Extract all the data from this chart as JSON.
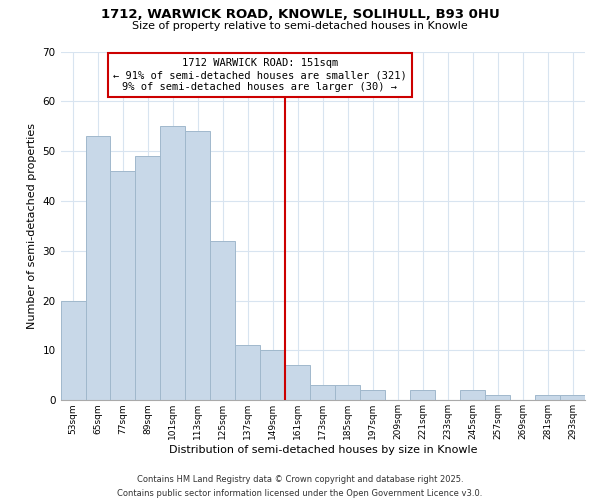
{
  "title": "1712, WARWICK ROAD, KNOWLE, SOLIHULL, B93 0HU",
  "subtitle": "Size of property relative to semi-detached houses in Knowle",
  "xlabel": "Distribution of semi-detached houses by size in Knowle",
  "ylabel": "Number of semi-detached properties",
  "bar_color": "#c8d8e8",
  "bar_edge_color": "#a0b8cc",
  "categories": [
    "53sqm",
    "65sqm",
    "77sqm",
    "89sqm",
    "101sqm",
    "113sqm",
    "125sqm",
    "137sqm",
    "149sqm",
    "161sqm",
    "173sqm",
    "185sqm",
    "197sqm",
    "209sqm",
    "221sqm",
    "233sqm",
    "245sqm",
    "257sqm",
    "269sqm",
    "281sqm",
    "293sqm"
  ],
  "values": [
    20,
    53,
    46,
    49,
    55,
    54,
    32,
    11,
    10,
    7,
    3,
    3,
    2,
    0,
    2,
    0,
    2,
    1,
    0,
    1,
    1
  ],
  "vline_index": 8,
  "vline_color": "#cc0000",
  "annotation_line1": "1712 WARWICK ROAD: 151sqm",
  "annotation_line2": "← 91% of semi-detached houses are smaller (321)",
  "annotation_line3": "9% of semi-detached houses are larger (30) →",
  "annotation_box_color": "#ffffff",
  "annotation_box_edge": "#cc0000",
  "ylim": [
    0,
    70
  ],
  "yticks": [
    0,
    10,
    20,
    30,
    40,
    50,
    60,
    70
  ],
  "footnote": "Contains HM Land Registry data © Crown copyright and database right 2025.\nContains public sector information licensed under the Open Government Licence v3.0.",
  "background_color": "#ffffff",
  "grid_color": "#d8e4f0"
}
